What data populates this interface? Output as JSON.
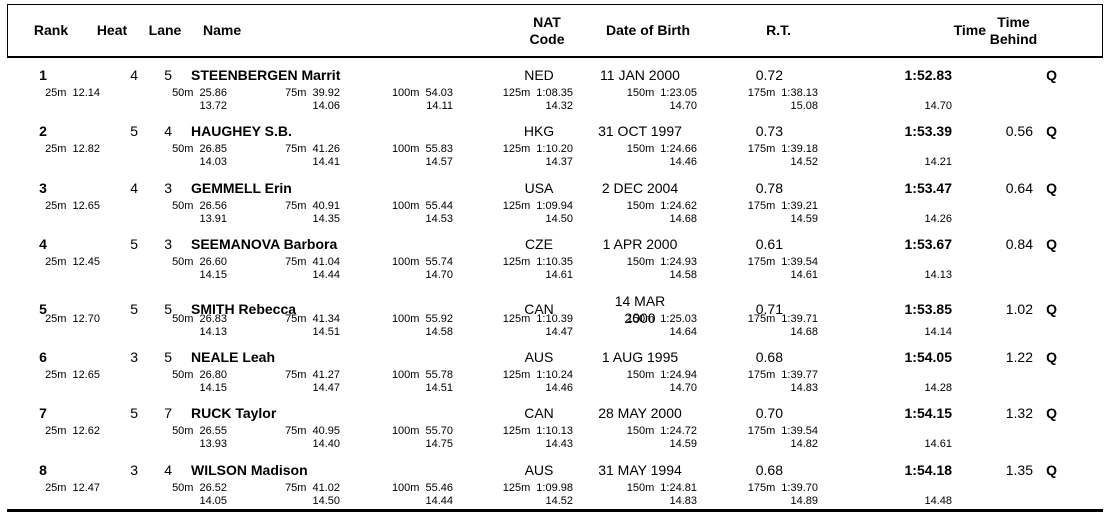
{
  "header": {
    "rank": "Rank",
    "heat": "Heat",
    "lane": "Lane",
    "name": "Name",
    "nat_line1": "NAT",
    "nat_line2": "Code",
    "dob": "Date of Birth",
    "rt": "R.T.",
    "time": "Time",
    "behind_line1": "Time",
    "behind_line2": "Behind"
  },
  "colors": {
    "text": "#000000",
    "background": "#ffffff",
    "rule": "#000000"
  },
  "rows": [
    {
      "rank": "1",
      "heat": "4",
      "lane": "5",
      "name": "STEENBERGEN Marrit",
      "nat": "NED",
      "dob": "11 JAN 2000",
      "rt": "0.72",
      "time": "1:52.83",
      "behind": "",
      "q": "Q",
      "splits": [
        {
          "label": "25m",
          "value": "12.14"
        },
        {
          "label": "50m",
          "value": "25.86"
        },
        {
          "label": "75m",
          "value": "39.92"
        },
        {
          "label": "100m",
          "value": "54.03"
        },
        {
          "label": "125m",
          "value": "1:08.35"
        },
        {
          "label": "150m",
          "value": "1:23.05"
        },
        {
          "label": "175m",
          "value": "1:38.13"
        }
      ],
      "laps": [
        "13.72",
        "14.06",
        "14.11",
        "14.32",
        "14.70",
        "15.08",
        "14.70"
      ]
    },
    {
      "rank": "2",
      "heat": "5",
      "lane": "4",
      "name": "HAUGHEY S.B.",
      "nat": "HKG",
      "dob": "31 OCT 1997",
      "rt": "0.73",
      "time": "1:53.39",
      "behind": "0.56",
      "q": "Q",
      "splits": [
        {
          "label": "25m",
          "value": "12.82"
        },
        {
          "label": "50m",
          "value": "26.85"
        },
        {
          "label": "75m",
          "value": "41.26"
        },
        {
          "label": "100m",
          "value": "55.83"
        },
        {
          "label": "125m",
          "value": "1:10.20"
        },
        {
          "label": "150m",
          "value": "1:24.66"
        },
        {
          "label": "175m",
          "value": "1:39.18"
        }
      ],
      "laps": [
        "14.03",
        "14.41",
        "14.57",
        "14.37",
        "14.46",
        "14.52",
        "14.21"
      ]
    },
    {
      "rank": "3",
      "heat": "4",
      "lane": "3",
      "name": "GEMMELL Erin",
      "nat": "USA",
      "dob": "2 DEC 2004",
      "rt": "0.78",
      "time": "1:53.47",
      "behind": "0.64",
      "q": "Q",
      "splits": [
        {
          "label": "25m",
          "value": "12.65"
        },
        {
          "label": "50m",
          "value": "26.56"
        },
        {
          "label": "75m",
          "value": "40.91"
        },
        {
          "label": "100m",
          "value": "55.44"
        },
        {
          "label": "125m",
          "value": "1:09.94"
        },
        {
          "label": "150m",
          "value": "1:24.62"
        },
        {
          "label": "175m",
          "value": "1:39.21"
        }
      ],
      "laps": [
        "13.91",
        "14.35",
        "14.53",
        "14.50",
        "14.68",
        "14.59",
        "14.26"
      ]
    },
    {
      "rank": "4",
      "heat": "5",
      "lane": "3",
      "name": "SEEMANOVA Barbora",
      "nat": "CZE",
      "dob": "1 APR 2000",
      "rt": "0.61",
      "time": "1:53.67",
      "behind": "0.84",
      "q": "Q",
      "splits": [
        {
          "label": "25m",
          "value": "12.45"
        },
        {
          "label": "50m",
          "value": "26.60"
        },
        {
          "label": "75m",
          "value": "41.04"
        },
        {
          "label": "100m",
          "value": "55.74"
        },
        {
          "label": "125m",
          "value": "1:10.35"
        },
        {
          "label": "150m",
          "value": "1:24.93"
        },
        {
          "label": "175m",
          "value": "1:39.54"
        }
      ],
      "laps": [
        "14.15",
        "14.44",
        "14.70",
        "14.61",
        "14.58",
        "14.61",
        "14.13"
      ]
    },
    {
      "rank": "5",
      "heat": "5",
      "lane": "5",
      "name": "SMITH Rebecca",
      "nat": "CAN",
      "dob": "14 MAR 2000",
      "rt": "0.71",
      "time": "1:53.85",
      "behind": "1.02",
      "q": "Q",
      "splits": [
        {
          "label": "25m",
          "value": "12.70"
        },
        {
          "label": "50m",
          "value": "26.83"
        },
        {
          "label": "75m",
          "value": "41.34"
        },
        {
          "label": "100m",
          "value": "55.92"
        },
        {
          "label": "125m",
          "value": "1:10.39"
        },
        {
          "label": "150m",
          "value": "1:25.03"
        },
        {
          "label": "175m",
          "value": "1:39.71"
        }
      ],
      "laps": [
        "14.13",
        "14.51",
        "14.58",
        "14.47",
        "14.64",
        "14.68",
        "14.14"
      ]
    },
    {
      "rank": "6",
      "heat": "3",
      "lane": "5",
      "name": "NEALE Leah",
      "nat": "AUS",
      "dob": "1 AUG 1995",
      "rt": "0.68",
      "time": "1:54.05",
      "behind": "1.22",
      "q": "Q",
      "splits": [
        {
          "label": "25m",
          "value": "12.65"
        },
        {
          "label": "50m",
          "value": "26.80"
        },
        {
          "label": "75m",
          "value": "41.27"
        },
        {
          "label": "100m",
          "value": "55.78"
        },
        {
          "label": "125m",
          "value": "1:10.24"
        },
        {
          "label": "150m",
          "value": "1:24.94"
        },
        {
          "label": "175m",
          "value": "1:39.77"
        }
      ],
      "laps": [
        "14.15",
        "14.47",
        "14.51",
        "14.46",
        "14.70",
        "14.83",
        "14.28"
      ]
    },
    {
      "rank": "7",
      "heat": "5",
      "lane": "7",
      "name": "RUCK Taylor",
      "nat": "CAN",
      "dob": "28 MAY 2000",
      "rt": "0.70",
      "time": "1:54.15",
      "behind": "1.32",
      "q": "Q",
      "splits": [
        {
          "label": "25m",
          "value": "12.62"
        },
        {
          "label": "50m",
          "value": "26.55"
        },
        {
          "label": "75m",
          "value": "40.95"
        },
        {
          "label": "100m",
          "value": "55.70"
        },
        {
          "label": "125m",
          "value": "1:10.13"
        },
        {
          "label": "150m",
          "value": "1:24.72"
        },
        {
          "label": "175m",
          "value": "1:39.54"
        }
      ],
      "laps": [
        "13.93",
        "14.40",
        "14.75",
        "14.43",
        "14.59",
        "14.82",
        "14.61"
      ]
    },
    {
      "rank": "8",
      "heat": "3",
      "lane": "4",
      "name": "WILSON Madison",
      "nat": "AUS",
      "dob": "31 MAY 1994",
      "rt": "0.68",
      "time": "1:54.18",
      "behind": "1.35",
      "q": "Q",
      "splits": [
        {
          "label": "25m",
          "value": "12.47"
        },
        {
          "label": "50m",
          "value": "26.52"
        },
        {
          "label": "75m",
          "value": "41.02"
        },
        {
          "label": "100m",
          "value": "55.46"
        },
        {
          "label": "125m",
          "value": "1:09.98"
        },
        {
          "label": "150m",
          "value": "1:24.81"
        },
        {
          "label": "175m",
          "value": "1:39.70"
        }
      ],
      "laps": [
        "14.05",
        "14.50",
        "14.44",
        "14.52",
        "14.83",
        "14.89",
        "14.48"
      ]
    }
  ]
}
